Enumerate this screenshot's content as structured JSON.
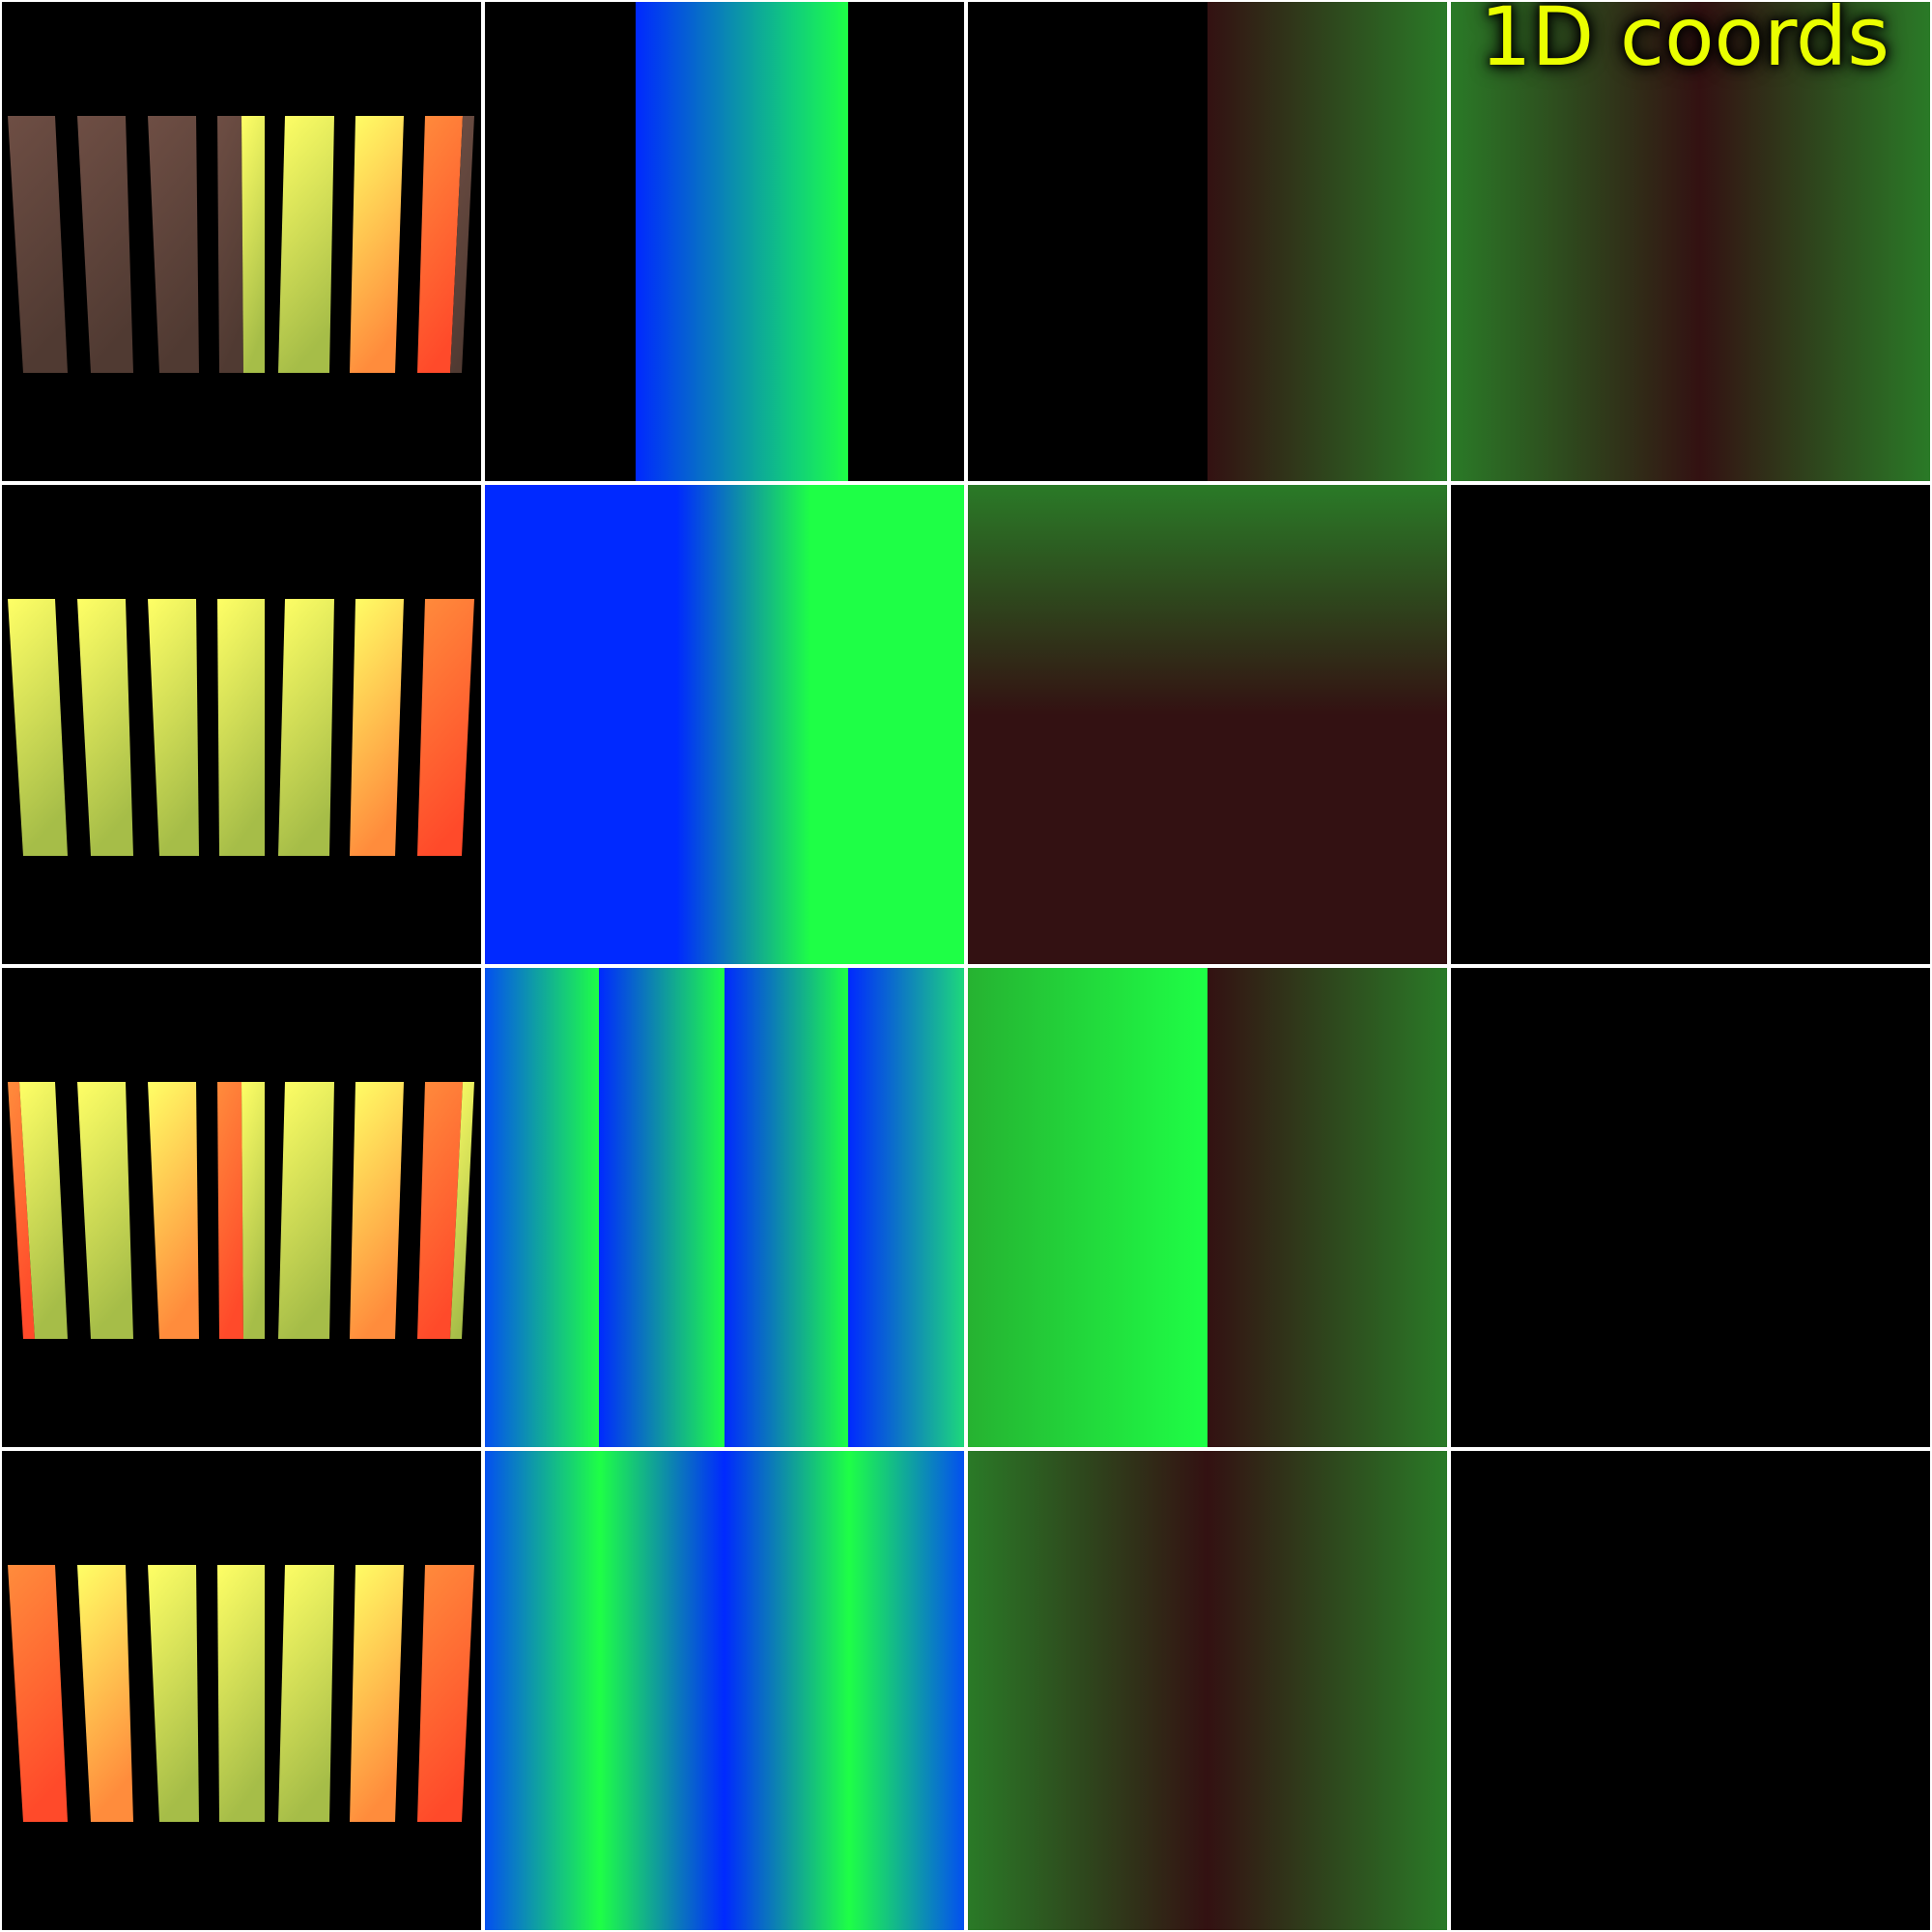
{
  "caption": "1D coords",
  "colors": {
    "blue": "#0029ff",
    "green": "#1eff46",
    "dark_red": "#331112",
    "dark_green": "#2a7a27",
    "mid_green": "#26b231",
    "yellow": "#ffff66",
    "orange": "#ff8c3c",
    "red": "#ff4a2a",
    "olive": "#a6bd48",
    "gray_brown": "#6e4e44",
    "gray_brown_dark": "#503a32",
    "grid_line": "#ffffff"
  },
  "grid": {
    "rows": 4,
    "cols": 4
  },
  "rows": [
    {
      "name": "row-1",
      "bar_states": [
        "gray",
        "gray",
        "gray",
        "gray-split",
        "yellow",
        "orange",
        "red-gray"
      ]
    },
    {
      "name": "row-2",
      "bar_states": [
        "yellow",
        "yellow",
        "yellow",
        "yellow",
        "yellow",
        "orange",
        "red"
      ]
    },
    {
      "name": "row-3",
      "bar_states": [
        "red-split",
        "yellow",
        "orange",
        "red-split",
        "yellow",
        "orange",
        "red-yellow"
      ]
    },
    {
      "name": "row-4",
      "bar_states": [
        "red",
        "orange",
        "yellow",
        "yellow",
        "yellow",
        "orange",
        "red"
      ]
    }
  ]
}
